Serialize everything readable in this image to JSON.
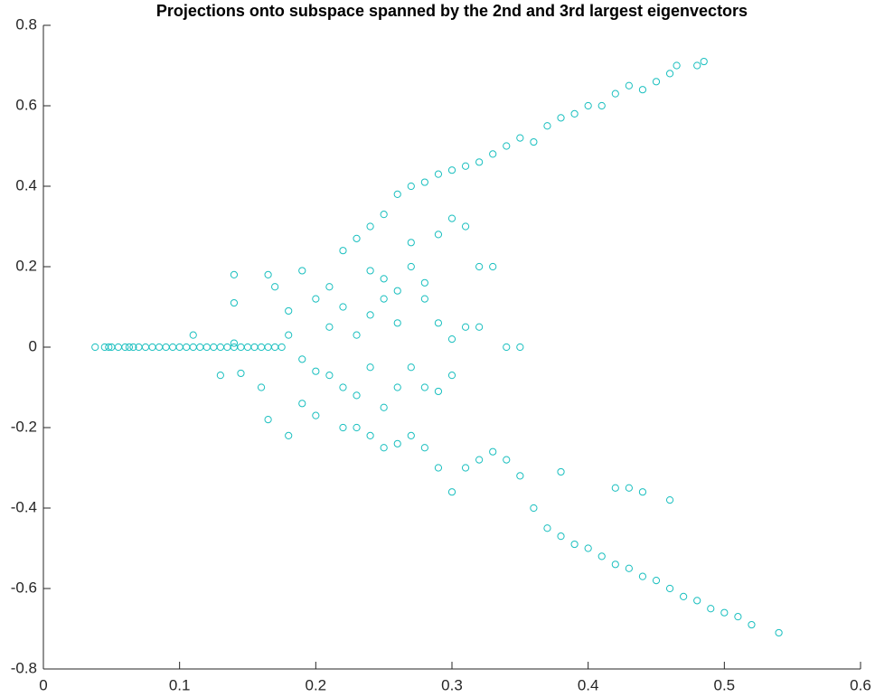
{
  "chart_data": {
    "type": "scatter",
    "title": "Projections onto subspace spanned by the 2nd and 3rd largest eigenvectors",
    "color": "#19bfbf",
    "xlim": [
      0,
      0.6
    ],
    "xticks": [
      0,
      0.1,
      0.2,
      0.3,
      0.4,
      0.5,
      0.6
    ],
    "ylim": [
      -0.8,
      0.8
    ],
    "yticks": [
      -0.8,
      -0.6,
      -0.4,
      -0.2,
      0,
      0.2,
      0.4,
      0.6,
      0.8
    ],
    "grid": false,
    "x": [
      0.038,
      0.045,
      0.048,
      0.05,
      0.055,
      0.06,
      0.063,
      0.066,
      0.07,
      0.075,
      0.08,
      0.085,
      0.09,
      0.095,
      0.1,
      0.105,
      0.11,
      0.115,
      0.12,
      0.125,
      0.13,
      0.135,
      0.14,
      0.145,
      0.15,
      0.155,
      0.16,
      0.165,
      0.17,
      0.175,
      0.22,
      0.23,
      0.24,
      0.25,
      0.26,
      0.27,
      0.28,
      0.29,
      0.3,
      0.31,
      0.32,
      0.33,
      0.34,
      0.35,
      0.36,
      0.37,
      0.38,
      0.39,
      0.4,
      0.41,
      0.42,
      0.43,
      0.44,
      0.45,
      0.46,
      0.465,
      0.48,
      0.485,
      0.23,
      0.24,
      0.25,
      0.26,
      0.27,
      0.28,
      0.29,
      0.3,
      0.31,
      0.32,
      0.33,
      0.34,
      0.35,
      0.36,
      0.37,
      0.38,
      0.39,
      0.4,
      0.41,
      0.42,
      0.43,
      0.44,
      0.45,
      0.46,
      0.47,
      0.48,
      0.49,
      0.5,
      0.51,
      0.52,
      0.54,
      0.42,
      0.43,
      0.44,
      0.46,
      0.38,
      0.14,
      0.14,
      0.165,
      0.17,
      0.18,
      0.19,
      0.2,
      0.21,
      0.22,
      0.24,
      0.25,
      0.26,
      0.27,
      0.28,
      0.29,
      0.3,
      0.31,
      0.32,
      0.33,
      0.27,
      0.29,
      0.25,
      0.23,
      0.19,
      0.2,
      0.21,
      0.22,
      0.24,
      0.26,
      0.28,
      0.29,
      0.3,
      0.31,
      0.32,
      0.34,
      0.35,
      0.3,
      0.16,
      0.165,
      0.18,
      0.19,
      0.2,
      0.22,
      0.23,
      0.13,
      0.145,
      0.11,
      0.14,
      0.25,
      0.27,
      0.21,
      0.18,
      0.24,
      0.26,
      0.28
    ],
    "values": [
      0,
      0,
      0,
      0,
      0,
      0,
      0,
      0,
      0,
      0,
      0,
      0,
      0,
      0,
      0,
      0,
      0,
      0,
      0,
      0,
      0,
      0,
      0,
      0,
      0,
      0,
      0,
      0,
      0,
      0,
      0.24,
      0.27,
      0.3,
      0.33,
      0.38,
      0.4,
      0.41,
      0.43,
      0.44,
      0.45,
      0.46,
      0.48,
      0.5,
      0.52,
      0.51,
      0.55,
      0.57,
      0.58,
      0.6,
      0.6,
      0.63,
      0.65,
      0.64,
      0.66,
      0.68,
      0.7,
      0.7,
      0.71,
      -0.2,
      -0.22,
      -0.25,
      -0.24,
      -0.22,
      -0.25,
      -0.3,
      -0.36,
      -0.3,
      -0.28,
      -0.26,
      -0.28,
      -0.32,
      -0.4,
      -0.45,
      -0.47,
      -0.49,
      -0.5,
      -0.52,
      -0.54,
      -0.55,
      -0.57,
      -0.58,
      -0.6,
      -0.62,
      -0.63,
      -0.65,
      -0.66,
      -0.67,
      -0.69,
      -0.71,
      -0.35,
      -0.35,
      -0.36,
      -0.38,
      -0.31,
      0.18,
      0.11,
      0.18,
      0.15,
      0.09,
      0.19,
      0.12,
      0.15,
      0.1,
      0.08,
      0.17,
      0.14,
      0.2,
      0.16,
      0.06,
      0.32,
      0.3,
      0.2,
      0.2,
      0.26,
      0.28,
      0.12,
      0.03,
      -0.03,
      -0.06,
      -0.07,
      -0.1,
      -0.05,
      -0.1,
      -0.1,
      -0.11,
      -0.07,
      0.05,
      0.05,
      0,
      0,
      0.02,
      -0.1,
      -0.18,
      -0.22,
      -0.14,
      -0.17,
      -0.2,
      -0.12,
      -0.07,
      -0.065,
      0.03,
      0.01,
      -0.15,
      -0.05,
      0.05,
      0.03,
      0.19,
      0.06,
      0.12
    ]
  }
}
